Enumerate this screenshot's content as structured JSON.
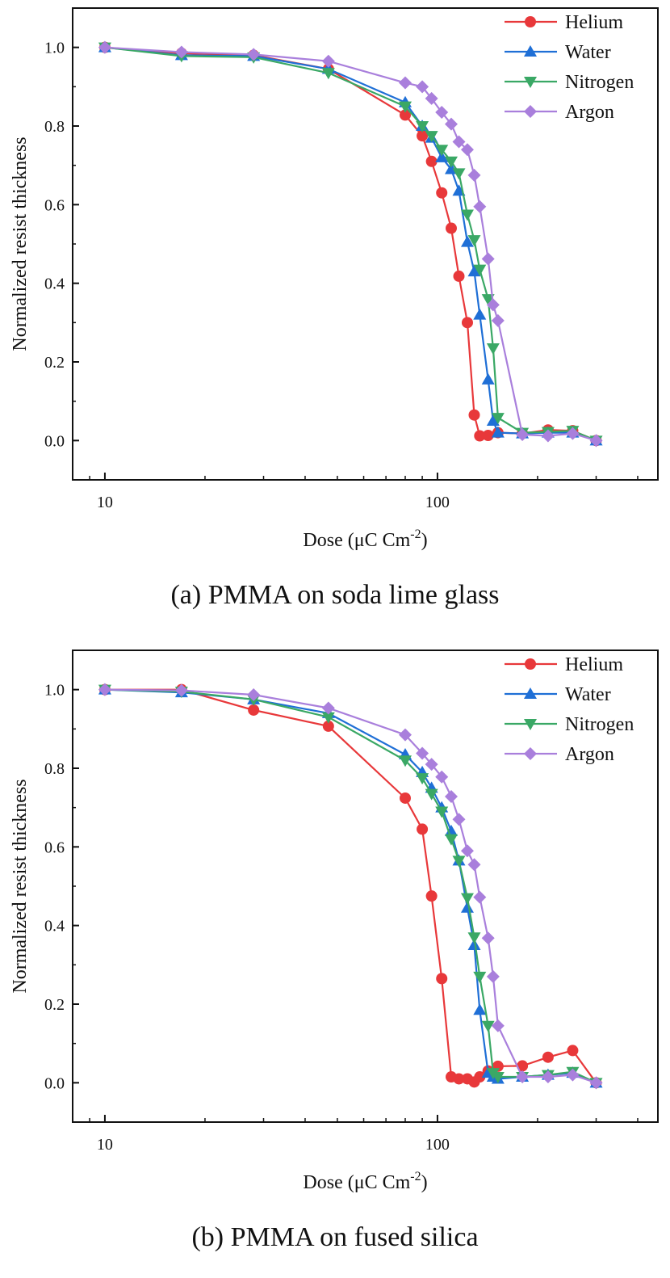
{
  "chart_data": [
    {
      "type": "line",
      "caption": "(a) PMMA on soda lime glass",
      "xlabel": "Dose (μC Cm",
      "xlabel_sup": "-2",
      "xlabel_end": ")",
      "ylabel": "Normalized resist thickness",
      "xscale": "log",
      "xlim": [
        8,
        460
      ],
      "ylim": [
        -0.1,
        1.1
      ],
      "xticks": [
        10,
        100
      ],
      "xtick_labels": [
        "10",
        "100"
      ],
      "yticks": [
        0.0,
        0.2,
        0.4,
        0.6,
        0.8,
        1.0
      ],
      "ytick_labels": [
        "0.0",
        "0.2",
        "0.4",
        "0.6",
        "0.8",
        "1.0"
      ],
      "legend_position": "top-right",
      "series": [
        {
          "name": "Helium",
          "color": "#e8383a",
          "marker": "circle",
          "x": [
            10,
            17,
            28,
            47,
            80,
            90,
            96,
            103,
            110,
            116,
            123,
            129,
            134,
            142,
            152,
            180,
            215,
            255,
            300
          ],
          "y": [
            1.0,
            0.985,
            0.98,
            0.945,
            0.828,
            0.775,
            0.71,
            0.63,
            0.54,
            0.418,
            0.3,
            0.065,
            0.012,
            0.013,
            0.02,
            0.018,
            0.027,
            0.025,
            0.0
          ]
        },
        {
          "name": "Water",
          "color": "#1f6fd6",
          "marker": "triangle-up",
          "x": [
            10,
            17,
            28,
            47,
            80,
            90,
            96,
            103,
            110,
            116,
            123,
            129,
            134,
            142,
            147,
            152,
            180,
            215,
            255,
            300
          ],
          "y": [
            1.0,
            0.98,
            0.978,
            0.945,
            0.86,
            0.8,
            0.77,
            0.72,
            0.69,
            0.635,
            0.505,
            0.43,
            0.32,
            0.155,
            0.05,
            0.02,
            0.018,
            0.02,
            0.02,
            0.0
          ]
        },
        {
          "name": "Nitrogen",
          "color": "#3aa865",
          "marker": "triangle-down",
          "x": [
            10,
            17,
            28,
            47,
            80,
            90,
            96,
            103,
            110,
            116,
            123,
            129,
            134,
            142,
            147,
            152,
            180,
            215,
            255,
            300
          ],
          "y": [
            1.0,
            0.978,
            0.975,
            0.935,
            0.85,
            0.8,
            0.775,
            0.74,
            0.71,
            0.68,
            0.575,
            0.51,
            0.435,
            0.36,
            0.235,
            0.058,
            0.02,
            0.022,
            0.025,
            0.0
          ]
        },
        {
          "name": "Argon",
          "color": "#a97fdc",
          "marker": "diamond",
          "x": [
            10,
            17,
            28,
            47,
            80,
            90,
            96,
            103,
            110,
            116,
            123,
            129,
            134,
            142,
            147,
            152,
            180,
            215,
            255,
            300
          ],
          "y": [
            1.0,
            0.988,
            0.982,
            0.965,
            0.91,
            0.9,
            0.87,
            0.835,
            0.805,
            0.76,
            0.74,
            0.675,
            0.595,
            0.462,
            0.345,
            0.305,
            0.015,
            0.012,
            0.018,
            0.0
          ]
        }
      ]
    },
    {
      "type": "line",
      "caption": "(b) PMMA on fused silica",
      "xlabel": "Dose (μC Cm",
      "xlabel_sup": "-2",
      "xlabel_end": ")",
      "ylabel": "Normalized resist thickness",
      "xscale": "log",
      "xlim": [
        8,
        460
      ],
      "ylim": [
        -0.1,
        1.1
      ],
      "xticks": [
        10,
        100
      ],
      "xtick_labels": [
        "10",
        "100"
      ],
      "yticks": [
        0.0,
        0.2,
        0.4,
        0.6,
        0.8,
        1.0
      ],
      "ytick_labels": [
        "0.0",
        "0.2",
        "0.4",
        "0.6",
        "0.8",
        "1.0"
      ],
      "legend_position": "top-right",
      "series": [
        {
          "name": "Helium",
          "color": "#e8383a",
          "marker": "circle",
          "x": [
            10,
            17,
            28,
            47,
            80,
            90,
            96,
            103,
            110,
            116,
            123,
            129,
            134,
            142,
            152,
            180,
            215,
            255,
            300
          ],
          "y": [
            1.0,
            1.0,
            0.948,
            0.907,
            0.724,
            0.645,
            0.475,
            0.265,
            0.015,
            0.01,
            0.01,
            0.002,
            0.015,
            0.03,
            0.042,
            0.043,
            0.065,
            0.082,
            0.0
          ]
        },
        {
          "name": "Water",
          "color": "#1f6fd6",
          "marker": "triangle-up",
          "x": [
            10,
            17,
            28,
            47,
            80,
            90,
            96,
            103,
            110,
            116,
            123,
            129,
            134,
            142,
            147,
            152,
            180,
            215,
            255,
            300
          ],
          "y": [
            1.0,
            0.993,
            0.975,
            0.94,
            0.835,
            0.79,
            0.75,
            0.7,
            0.64,
            0.565,
            0.445,
            0.35,
            0.185,
            0.025,
            0.015,
            0.01,
            0.015,
            0.02,
            0.025,
            0.0
          ]
        },
        {
          "name": "Nitrogen",
          "color": "#3aa865",
          "marker": "triangle-down",
          "x": [
            10,
            17,
            28,
            47,
            80,
            90,
            96,
            103,
            110,
            116,
            123,
            129,
            134,
            142,
            147,
            152,
            180,
            215,
            255,
            300
          ],
          "y": [
            1.0,
            0.995,
            0.975,
            0.93,
            0.82,
            0.775,
            0.735,
            0.69,
            0.62,
            0.565,
            0.47,
            0.37,
            0.27,
            0.145,
            0.025,
            0.015,
            0.015,
            0.02,
            0.028,
            0.0
          ]
        },
        {
          "name": "Argon",
          "color": "#a97fdc",
          "marker": "diamond",
          "x": [
            10,
            17,
            28,
            47,
            80,
            90,
            96,
            103,
            110,
            116,
            123,
            129,
            134,
            142,
            147,
            152,
            180,
            215,
            255,
            300
          ],
          "y": [
            1.0,
            0.998,
            0.987,
            0.953,
            0.885,
            0.838,
            0.81,
            0.778,
            0.728,
            0.67,
            0.59,
            0.555,
            0.472,
            0.368,
            0.27,
            0.145,
            0.015,
            0.015,
            0.02,
            0.0
          ]
        }
      ]
    }
  ]
}
